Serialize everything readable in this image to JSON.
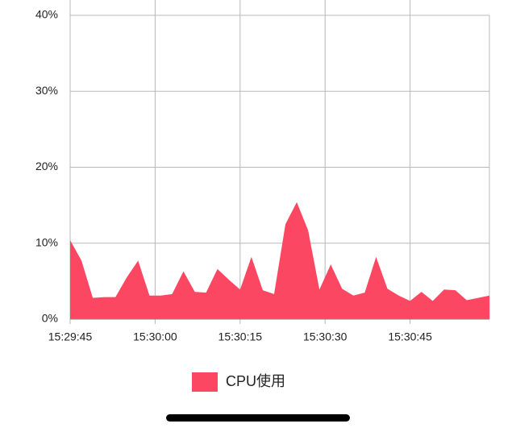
{
  "chart_data": {
    "type": "area",
    "x": [
      0,
      2,
      4,
      6,
      8,
      10,
      12,
      14,
      16,
      18,
      20,
      22,
      24,
      26,
      28,
      30,
      32,
      34,
      36,
      38,
      40,
      42,
      44,
      46,
      48,
      50,
      52,
      54,
      56,
      58,
      60,
      62,
      64,
      66,
      68,
      70,
      72,
      74
    ],
    "series": [
      {
        "name": "CPU使用",
        "color": "#fb4761",
        "values": [
          10.4,
          7.7,
          2.8,
          2.9,
          2.9,
          5.5,
          7.7,
          3.1,
          3.1,
          3.3,
          6.3,
          3.6,
          3.5,
          6.6,
          5.2,
          3.9,
          8.2,
          3.8,
          3.3,
          12.5,
          15.4,
          11.7,
          3.9,
          7.2,
          4.0,
          3.1,
          3.5,
          8.2,
          4.0,
          3.1,
          2.4,
          3.6,
          2.4,
          3.9,
          3.8,
          2.5,
          2.8,
          3.1
        ]
      }
    ],
    "xlim": [
      0,
      74
    ],
    "xticks": [
      {
        "value": 0,
        "label": "15:29:45"
      },
      {
        "value": 15,
        "label": "15:30:00"
      },
      {
        "value": 30,
        "label": "15:30:15"
      },
      {
        "value": 45,
        "label": "15:30:30"
      },
      {
        "value": 60,
        "label": "15:30:45"
      }
    ],
    "ylim": [
      0,
      40
    ],
    "yticks": [
      {
        "value": 0,
        "label": "0%"
      },
      {
        "value": 10,
        "label": "10%"
      },
      {
        "value": 20,
        "label": "20%"
      },
      {
        "value": 30,
        "label": "30%"
      },
      {
        "value": 40,
        "label": "40%"
      }
    ],
    "grid": true
  }
}
